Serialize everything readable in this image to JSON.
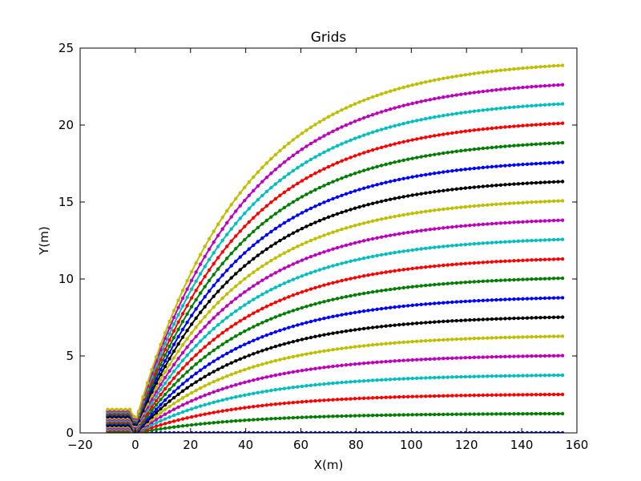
{
  "chart_data": {
    "type": "scatter",
    "title": "Grids",
    "xlabel": "X(m)",
    "ylabel": "Y(m)",
    "xlim": [
      -20,
      160
    ],
    "ylim": [
      0,
      25
    ],
    "xticks": [
      -20,
      0,
      20,
      40,
      60,
      80,
      100,
      120,
      140,
      160
    ],
    "yticks": [
      0,
      5,
      10,
      15,
      20,
      25
    ],
    "grid": false,
    "legend": "none",
    "x_start": -10,
    "x_end": 155,
    "inlet_end_x": -2,
    "bump_x": 0.5,
    "bump_depth": 0.55,
    "series": [
      {
        "color": "#0000bf",
        "y_inlet": 0.0,
        "y_final": 0.0
      },
      {
        "color": "#007f00",
        "y_inlet": 0.08,
        "y_final": 1.25
      },
      {
        "color": "#ff0000",
        "y_inlet": 0.16,
        "y_final": 2.5
      },
      {
        "color": "#00bfbf",
        "y_inlet": 0.24,
        "y_final": 3.75
      },
      {
        "color": "#bf00bf",
        "y_inlet": 0.32,
        "y_final": 5.02
      },
      {
        "color": "#bfbf00",
        "y_inlet": 0.4,
        "y_final": 6.28
      },
      {
        "color": "#000000",
        "y_inlet": 0.48,
        "y_final": 7.52
      },
      {
        "color": "#0000ff",
        "y_inlet": 0.56,
        "y_final": 8.78
      },
      {
        "color": "#007f00",
        "y_inlet": 0.64,
        "y_final": 10.05
      },
      {
        "color": "#ff0000",
        "y_inlet": 0.72,
        "y_final": 11.3
      },
      {
        "color": "#00bfbf",
        "y_inlet": 0.8,
        "y_final": 12.57
      },
      {
        "color": "#bf00bf",
        "y_inlet": 0.88,
        "y_final": 13.82
      },
      {
        "color": "#bfbf00",
        "y_inlet": 0.96,
        "y_final": 15.08
      },
      {
        "color": "#000000",
        "y_inlet": 1.04,
        "y_final": 16.33
      },
      {
        "color": "#0000ff",
        "y_inlet": 1.12,
        "y_final": 17.58
      },
      {
        "color": "#007f00",
        "y_inlet": 1.2,
        "y_final": 18.85
      },
      {
        "color": "#ff0000",
        "y_inlet": 1.28,
        "y_final": 20.12
      },
      {
        "color": "#00bfbf",
        "y_inlet": 1.36,
        "y_final": 21.38
      },
      {
        "color": "#bf00bf",
        "y_inlet": 1.44,
        "y_final": 22.62
      },
      {
        "color": "#bfbf00",
        "y_inlet": 1.52,
        "y_final": 23.88
      }
    ]
  }
}
